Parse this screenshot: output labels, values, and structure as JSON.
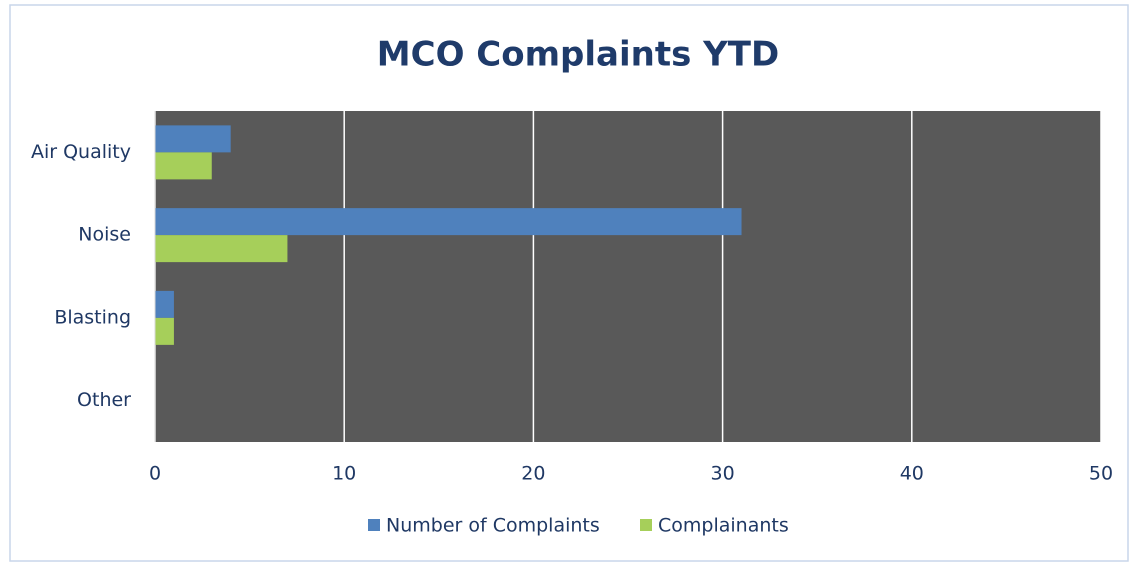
{
  "chart_data": {
    "type": "bar",
    "orientation": "horizontal",
    "title": "MCO Complaints YTD",
    "categories": [
      "Air Quality",
      "Noise",
      "Blasting",
      "Other"
    ],
    "series": [
      {
        "name": "Number of Complaints",
        "color": "#4f81bd",
        "values": [
          4,
          31,
          1,
          0
        ]
      },
      {
        "name": "Complainants",
        "color": "#a6cf5a",
        "values": [
          3,
          7,
          1,
          0
        ]
      }
    ],
    "xlim": [
      0,
      50
    ],
    "xticks": [
      0,
      10,
      20,
      30,
      40,
      50
    ],
    "grid": true,
    "legend": "bottom"
  }
}
